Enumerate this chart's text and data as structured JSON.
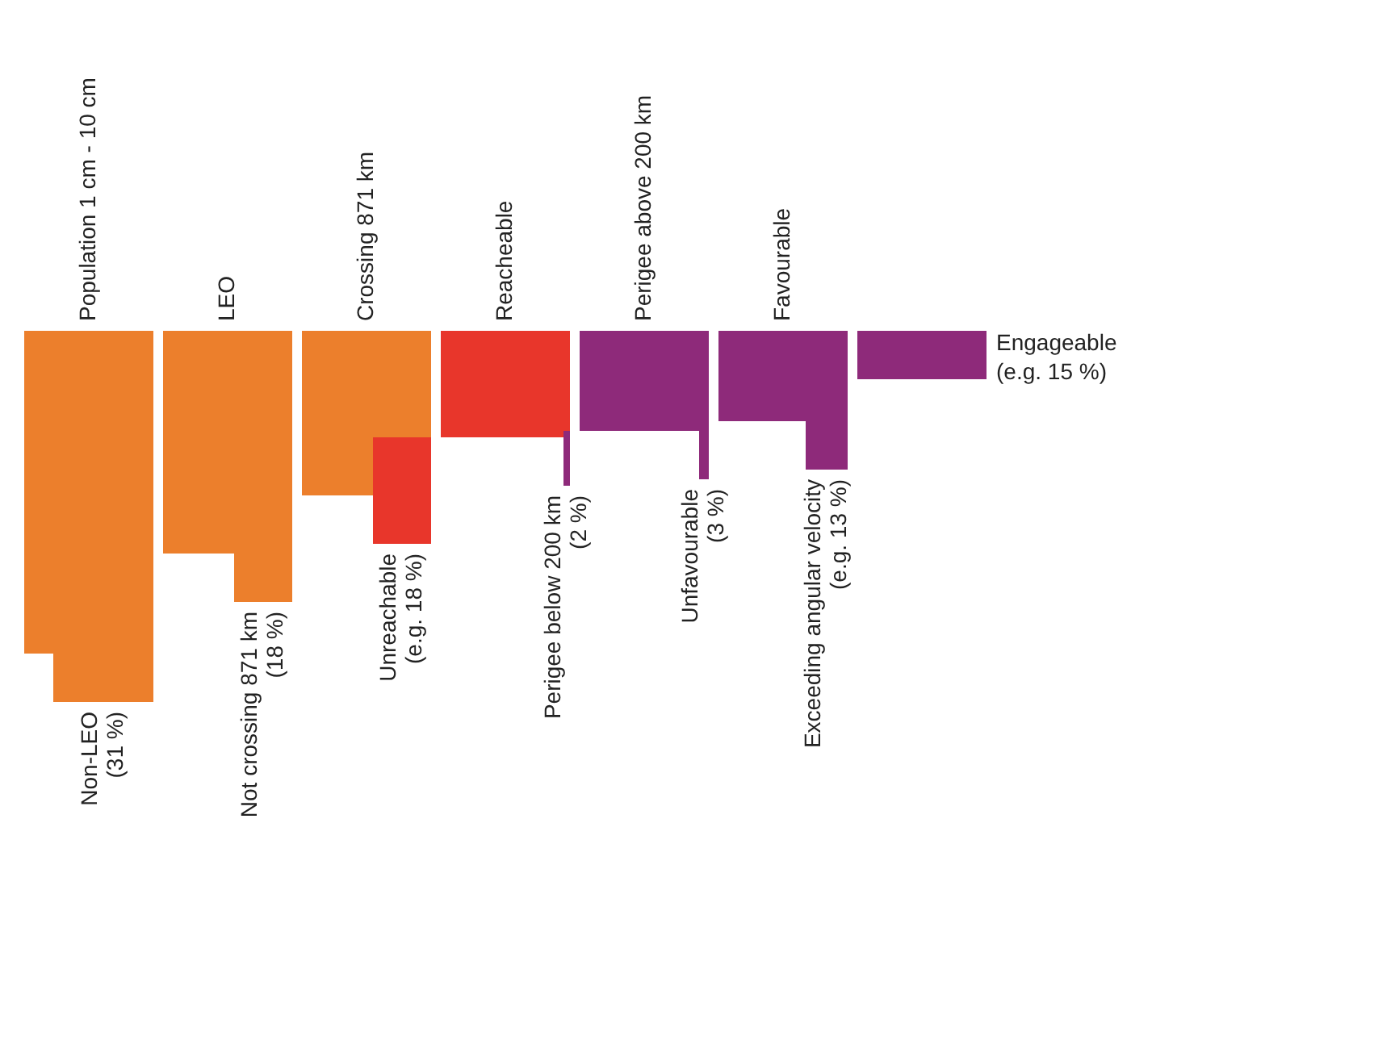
{
  "chart_data": {
    "type": "other",
    "categories": [
      "Non-LEO",
      "Not crossing 871 km",
      "Unreachable",
      "Perigee below 200 km",
      "Unfavourable",
      "Exceeding angular velocity",
      "Engageable"
    ],
    "values": [
      31,
      18,
      18,
      2,
      3,
      13,
      15
    ],
    "value_labels": [
      "(31 %)",
      "(18 %)",
      "(e.g. 18 %)",
      "(2 %)",
      "(3 %)",
      "(e.g. 13 %)",
      "(e.g. 15 %)"
    ],
    "colors": [
      "#ec7f2c",
      "#ec7f2c",
      "#e8362b",
      "#8e2a7a",
      "#8e2a7a",
      "#8e2a7a",
      "#8e2a7a"
    ],
    "annotations": [
      "Population 1 cm - 10 cm",
      "LEO",
      "Crossing 871 km",
      "Reacheable",
      "Perigee above 200 km",
      "Favourable"
    ]
  }
}
